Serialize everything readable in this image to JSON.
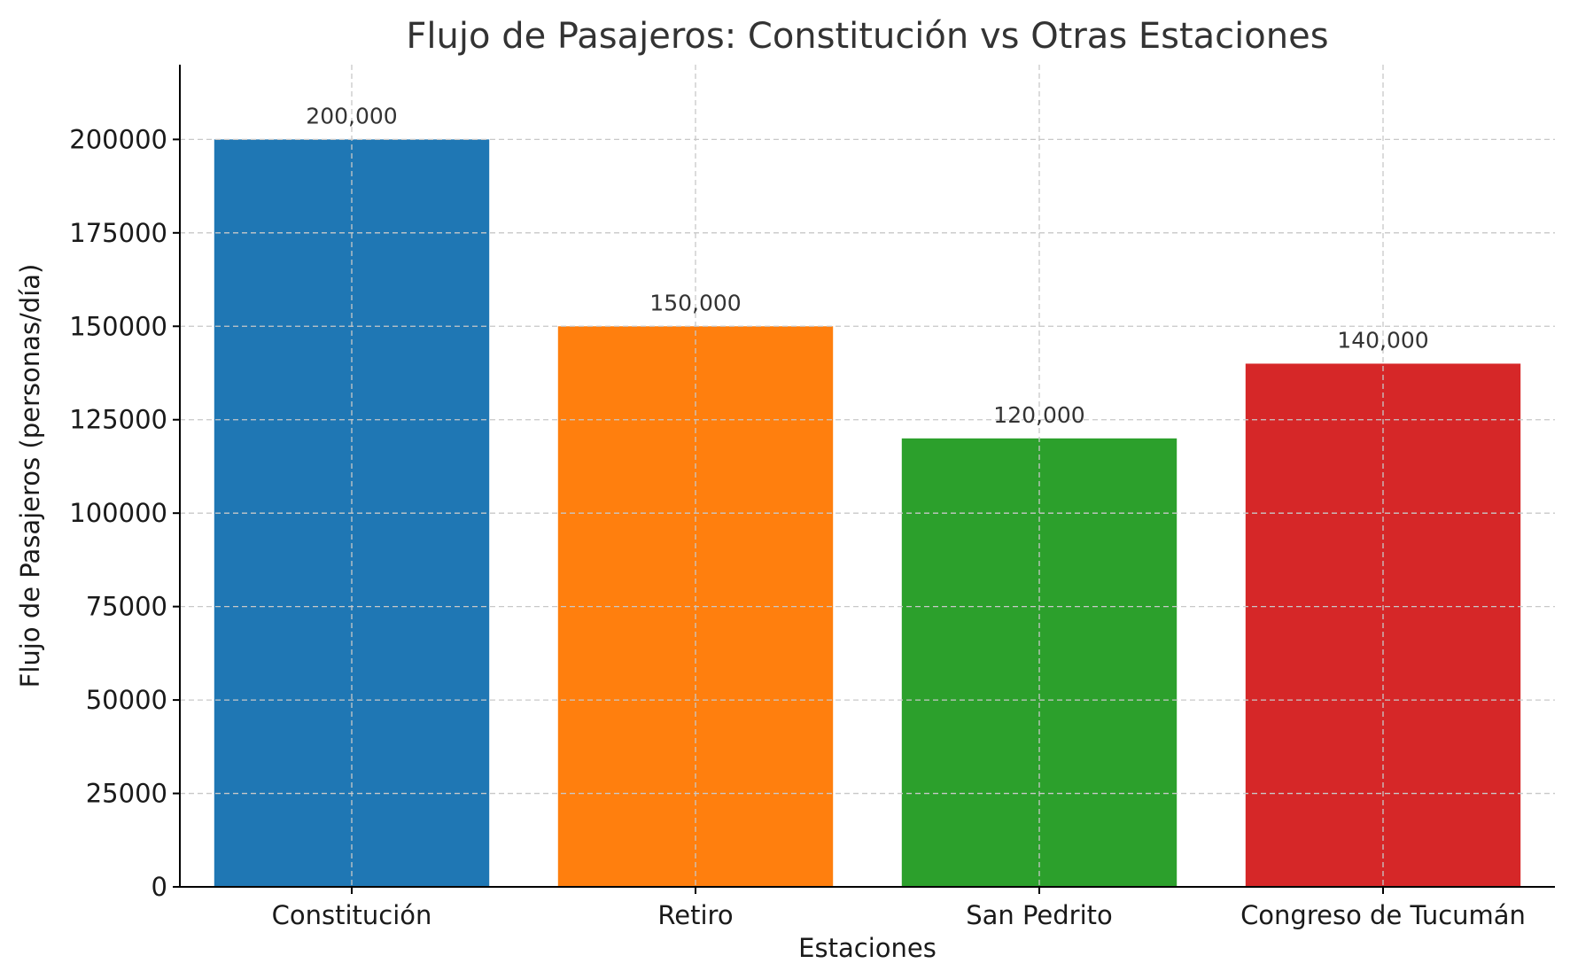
{
  "chart_data": {
    "type": "bar",
    "title": "Flujo de Pasajeros: Constitución vs Otras Estaciones",
    "xlabel": "Estaciones",
    "ylabel": "Flujo de Pasajeros (personas/día)",
    "categories": [
      "Constitución",
      "Retiro",
      "San Pedrito",
      "Congreso de Tucumán"
    ],
    "values": [
      200000,
      150000,
      120000,
      140000
    ],
    "value_labels": [
      "200,000",
      "150,000",
      "120,000",
      "140,000"
    ],
    "colors": [
      "#1f77b4",
      "#ff7f0e",
      "#2ca02c",
      "#d62728"
    ],
    "ylim": [
      0,
      220000
    ],
    "yticks": [
      0,
      25000,
      50000,
      75000,
      100000,
      125000,
      150000,
      175000,
      200000
    ],
    "ytick_labels": [
      "0",
      "25000",
      "50000",
      "75000",
      "100000",
      "125000",
      "150000",
      "175000",
      "200000"
    ],
    "grid": true,
    "grid_style": "dashed",
    "legend": false
  }
}
